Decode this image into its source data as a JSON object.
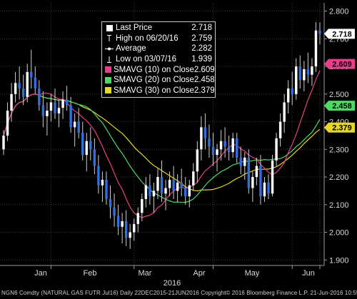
{
  "colors": {
    "background": "#000000",
    "up_candle": "#ffffff",
    "down_candle": "#2f6fe0",
    "smavg10": "#e83e8c",
    "smavg20": "#4cd964",
    "smavg30": "#e6d52a",
    "grid": "#3a3a3a",
    "axis_text": "#d8d8d8"
  },
  "legend": {
    "items": [
      {
        "icon": "square-icon",
        "label": "Last Price",
        "value": "2.718",
        "color": "#ffffff"
      },
      {
        "icon": "high-marker-icon",
        "label": "High on 06/20/16",
        "value": "2.759",
        "color": "#ffffff"
      },
      {
        "icon": "average-line-icon",
        "label": "Average",
        "value": "2.282",
        "color": "#ffffff"
      },
      {
        "icon": "low-marker-icon",
        "label": "Low on 03/07/16",
        "value": "1.939",
        "color": "#ffffff"
      },
      {
        "icon": "square-icon",
        "label": "SMAVG (10) on Close",
        "value": "2.609",
        "color": "#e83e8c"
      },
      {
        "icon": "square-icon",
        "label": "SMAVG (20) on Close",
        "value": "2.458",
        "color": "#4cd964"
      },
      {
        "icon": "square-icon",
        "label": "SMAVG (30) on Close",
        "value": "2.379",
        "color": "#e6d52a"
      }
    ]
  },
  "footer": "NGN6 Comdty (NATURAL GAS FUTR Jul16) Daily 22DEC2015-21JUN2016 Copyright© 2016 Bloomberg Finance L.P. 21-Jun-2016 10:55:03",
  "chart_data": {
    "type": "candlestick",
    "y_ticks": [
      "1.900",
      "2.000",
      "2.100",
      "2.200",
      "2.300",
      "2.400",
      "2.500",
      "2.600",
      "2.700",
      "2.800"
    ],
    "ylim": [
      1.88,
      2.83
    ],
    "x_ticks": [
      "Jan",
      "Feb",
      "Mar",
      "Apr",
      "May",
      "Jun"
    ],
    "x_year_label": "2016",
    "price_tags": [
      {
        "value": 2.718,
        "label": "2.718",
        "bg": "#ffffff",
        "fg": "#000000"
      },
      {
        "value": 2.609,
        "label": "2.609",
        "bg": "#e83e8c",
        "fg": "#000000"
      },
      {
        "value": 2.458,
        "label": "2.458",
        "bg": "#4cd964",
        "fg": "#000000"
      },
      {
        "value": 2.379,
        "label": "2.379",
        "bg": "#e6d52a",
        "fg": "#000000"
      }
    ],
    "candles": [
      {
        "o": 2.3,
        "h": 2.37,
        "l": 2.28,
        "c": 2.35
      },
      {
        "o": 2.35,
        "h": 2.47,
        "l": 2.33,
        "c": 2.44
      },
      {
        "o": 2.44,
        "h": 2.54,
        "l": 2.4,
        "c": 2.5
      },
      {
        "o": 2.5,
        "h": 2.58,
        "l": 2.47,
        "c": 2.54
      },
      {
        "o": 2.54,
        "h": 2.6,
        "l": 2.48,
        "c": 2.52
      },
      {
        "o": 2.52,
        "h": 2.57,
        "l": 2.46,
        "c": 2.49
      },
      {
        "o": 2.49,
        "h": 2.61,
        "l": 2.47,
        "c": 2.58
      },
      {
        "o": 2.58,
        "h": 2.66,
        "l": 2.52,
        "c": 2.56
      },
      {
        "o": 2.56,
        "h": 2.6,
        "l": 2.5,
        "c": 2.52
      },
      {
        "o": 2.52,
        "h": 2.55,
        "l": 2.44,
        "c": 2.46
      },
      {
        "o": 2.46,
        "h": 2.51,
        "l": 2.38,
        "c": 2.42
      },
      {
        "o": 2.42,
        "h": 2.47,
        "l": 2.35,
        "c": 2.44
      },
      {
        "o": 2.44,
        "h": 2.5,
        "l": 2.4,
        "c": 2.47
      },
      {
        "o": 2.47,
        "h": 2.52,
        "l": 2.41,
        "c": 2.43
      },
      {
        "o": 2.43,
        "h": 2.48,
        "l": 2.38,
        "c": 2.45
      },
      {
        "o": 2.45,
        "h": 2.51,
        "l": 2.41,
        "c": 2.48
      },
      {
        "o": 2.48,
        "h": 2.53,
        "l": 2.44,
        "c": 2.46
      },
      {
        "o": 2.46,
        "h": 2.49,
        "l": 2.36,
        "c": 2.38
      },
      {
        "o": 2.38,
        "h": 2.43,
        "l": 2.31,
        "c": 2.4
      },
      {
        "o": 2.4,
        "h": 2.45,
        "l": 2.34,
        "c": 2.36
      },
      {
        "o": 2.36,
        "h": 2.4,
        "l": 2.26,
        "c": 2.28
      },
      {
        "o": 2.28,
        "h": 2.36,
        "l": 2.22,
        "c": 2.33
      },
      {
        "o": 2.33,
        "h": 2.38,
        "l": 2.26,
        "c": 2.3
      },
      {
        "o": 2.3,
        "h": 2.34,
        "l": 2.21,
        "c": 2.24
      },
      {
        "o": 2.24,
        "h": 2.28,
        "l": 2.14,
        "c": 2.17
      },
      {
        "o": 2.17,
        "h": 2.22,
        "l": 2.11,
        "c": 2.19
      },
      {
        "o": 2.19,
        "h": 2.22,
        "l": 2.1,
        "c": 2.12
      },
      {
        "o": 2.12,
        "h": 2.17,
        "l": 2.05,
        "c": 2.09
      },
      {
        "o": 2.09,
        "h": 2.14,
        "l": 2.02,
        "c": 2.06
      },
      {
        "o": 2.06,
        "h": 2.1,
        "l": 1.99,
        "c": 2.02
      },
      {
        "o": 2.02,
        "h": 2.07,
        "l": 1.96,
        "c": 2.04
      },
      {
        "o": 2.04,
        "h": 2.08,
        "l": 1.95,
        "c": 1.98
      },
      {
        "o": 1.98,
        "h": 2.03,
        "l": 1.94,
        "c": 2.0
      },
      {
        "o": 2.0,
        "h": 2.05,
        "l": 1.97,
        "c": 2.03
      },
      {
        "o": 2.03,
        "h": 2.09,
        "l": 2.0,
        "c": 2.07
      },
      {
        "o": 2.07,
        "h": 2.14,
        "l": 2.04,
        "c": 2.12
      },
      {
        "o": 2.12,
        "h": 2.2,
        "l": 2.09,
        "c": 2.17
      },
      {
        "o": 2.17,
        "h": 2.21,
        "l": 2.1,
        "c": 2.13
      },
      {
        "o": 2.13,
        "h": 2.18,
        "l": 2.07,
        "c": 2.15
      },
      {
        "o": 2.15,
        "h": 2.23,
        "l": 2.12,
        "c": 2.2
      },
      {
        "o": 2.2,
        "h": 2.26,
        "l": 2.11,
        "c": 2.14
      },
      {
        "o": 2.14,
        "h": 2.19,
        "l": 2.08,
        "c": 2.16
      },
      {
        "o": 2.16,
        "h": 2.22,
        "l": 2.13,
        "c": 2.19
      },
      {
        "o": 2.19,
        "h": 2.24,
        "l": 2.12,
        "c": 2.15
      },
      {
        "o": 2.15,
        "h": 2.21,
        "l": 2.11,
        "c": 2.18
      },
      {
        "o": 2.18,
        "h": 2.23,
        "l": 2.13,
        "c": 2.16
      },
      {
        "o": 2.16,
        "h": 2.2,
        "l": 2.1,
        "c": 2.13
      },
      {
        "o": 2.13,
        "h": 2.19,
        "l": 2.09,
        "c": 2.17
      },
      {
        "o": 2.17,
        "h": 2.25,
        "l": 2.15,
        "c": 2.22
      },
      {
        "o": 2.22,
        "h": 2.33,
        "l": 2.18,
        "c": 2.3
      },
      {
        "o": 2.3,
        "h": 2.42,
        "l": 2.26,
        "c": 2.38
      },
      {
        "o": 2.38,
        "h": 2.43,
        "l": 2.3,
        "c": 2.34
      },
      {
        "o": 2.34,
        "h": 2.39,
        "l": 2.27,
        "c": 2.31
      },
      {
        "o": 2.31,
        "h": 2.36,
        "l": 2.24,
        "c": 2.28
      },
      {
        "o": 2.28,
        "h": 2.32,
        "l": 2.22,
        "c": 2.3
      },
      {
        "o": 2.3,
        "h": 2.37,
        "l": 2.26,
        "c": 2.33
      },
      {
        "o": 2.33,
        "h": 2.38,
        "l": 2.27,
        "c": 2.31
      },
      {
        "o": 2.31,
        "h": 2.35,
        "l": 2.26,
        "c": 2.29
      },
      {
        "o": 2.29,
        "h": 2.36,
        "l": 2.27,
        "c": 2.34
      },
      {
        "o": 2.34,
        "h": 2.36,
        "l": 2.25,
        "c": 2.27
      },
      {
        "o": 2.27,
        "h": 2.31,
        "l": 2.21,
        "c": 2.24
      },
      {
        "o": 2.24,
        "h": 2.29,
        "l": 2.19,
        "c": 2.27
      },
      {
        "o": 2.27,
        "h": 2.3,
        "l": 2.14,
        "c": 2.16
      },
      {
        "o": 2.16,
        "h": 2.22,
        "l": 2.11,
        "c": 2.2
      },
      {
        "o": 2.2,
        "h": 2.27,
        "l": 2.17,
        "c": 2.24
      },
      {
        "o": 2.24,
        "h": 2.28,
        "l": 2.1,
        "c": 2.13
      },
      {
        "o": 2.13,
        "h": 2.2,
        "l": 2.11,
        "c": 2.18
      },
      {
        "o": 2.18,
        "h": 2.21,
        "l": 2.12,
        "c": 2.14
      },
      {
        "o": 2.14,
        "h": 2.28,
        "l": 2.13,
        "c": 2.26
      },
      {
        "o": 2.26,
        "h": 2.36,
        "l": 2.24,
        "c": 2.34
      },
      {
        "o": 2.34,
        "h": 2.43,
        "l": 2.31,
        "c": 2.4
      },
      {
        "o": 2.4,
        "h": 2.5,
        "l": 2.36,
        "c": 2.47
      },
      {
        "o": 2.47,
        "h": 2.55,
        "l": 2.43,
        "c": 2.52
      },
      {
        "o": 2.52,
        "h": 2.58,
        "l": 2.46,
        "c": 2.5
      },
      {
        "o": 2.5,
        "h": 2.63,
        "l": 2.48,
        "c": 2.6
      },
      {
        "o": 2.6,
        "h": 2.64,
        "l": 2.52,
        "c": 2.55
      },
      {
        "o": 2.55,
        "h": 2.62,
        "l": 2.51,
        "c": 2.59
      },
      {
        "o": 2.59,
        "h": 2.65,
        "l": 2.54,
        "c": 2.57
      },
      {
        "o": 2.57,
        "h": 2.63,
        "l": 2.53,
        "c": 2.6
      },
      {
        "o": 2.6,
        "h": 2.76,
        "l": 2.58,
        "c": 2.73
      },
      {
        "o": 2.73,
        "h": 2.759,
        "l": 2.68,
        "c": 2.718
      }
    ]
  }
}
